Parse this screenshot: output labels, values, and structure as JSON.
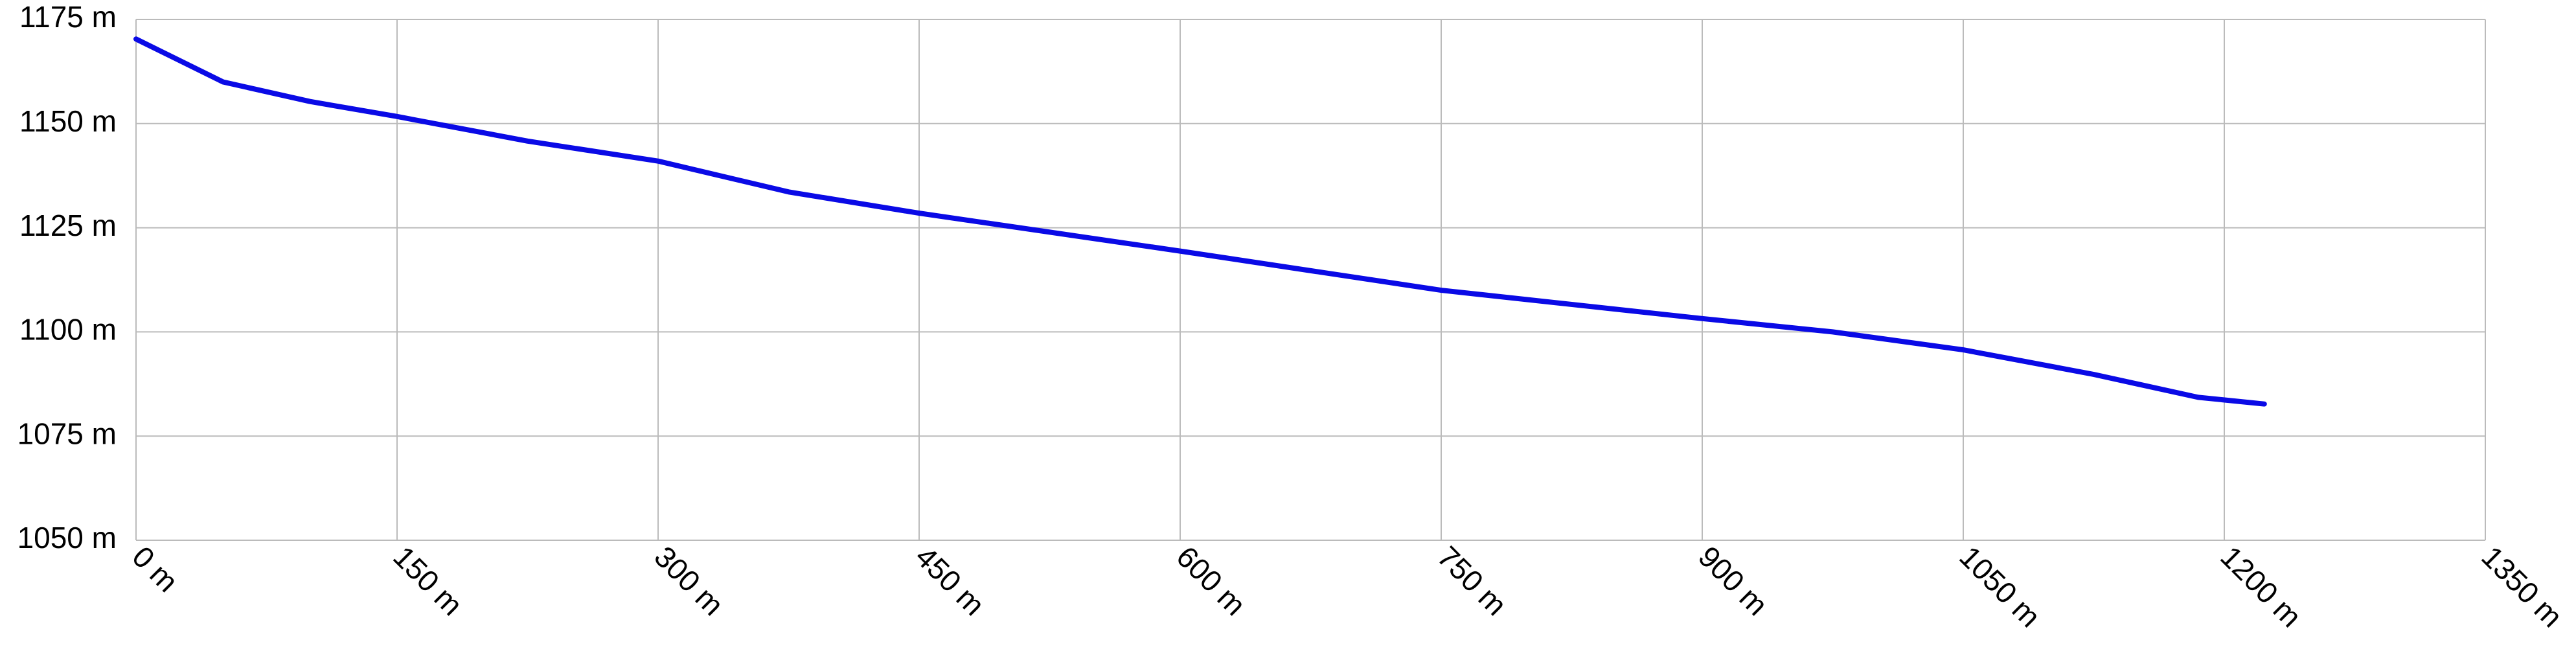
{
  "chart_data": {
    "type": "line",
    "x": [
      0,
      50,
      100,
      150,
      225,
      300,
      375,
      450,
      600,
      750,
      900,
      975,
      1050,
      1125,
      1185,
      1223
    ],
    "series": [
      {
        "color": "#0a0ae6",
        "values": [
          1170.3,
          1160,
          1155.3,
          1151.7,
          1145.8,
          1141,
          1133.6,
          1128.5,
          1119.4,
          1110,
          1103.2,
          1100,
          1095.7,
          1089.8,
          1084.3,
          1082.7
        ]
      }
    ],
    "xlim": [
      0,
      1350
    ],
    "xticks": [
      {
        "value": 0,
        "label": "0 m"
      },
      {
        "value": 150,
        "label": "150 m"
      },
      {
        "value": 300,
        "label": "300 m"
      },
      {
        "value": 450,
        "label": "450 m"
      },
      {
        "value": 600,
        "label": "600 m"
      },
      {
        "value": 750,
        "label": "750 m"
      },
      {
        "value": 900,
        "label": "900 m"
      },
      {
        "value": 1050,
        "label": "1050 m"
      },
      {
        "value": 1200,
        "label": "1200 m"
      },
      {
        "value": 1350,
        "label": "1350 m"
      }
    ],
    "ylim": [
      1050,
      1175
    ],
    "yticks": [
      {
        "value": 1050,
        "label": "1050 m"
      },
      {
        "value": 1075,
        "label": "1075 m"
      },
      {
        "value": 1100,
        "label": "1100 m"
      },
      {
        "value": 1125,
        "label": "1125 m"
      },
      {
        "value": 1150,
        "label": "1150 m"
      },
      {
        "value": 1175,
        "label": "1175 m"
      }
    ],
    "grid": true
  }
}
